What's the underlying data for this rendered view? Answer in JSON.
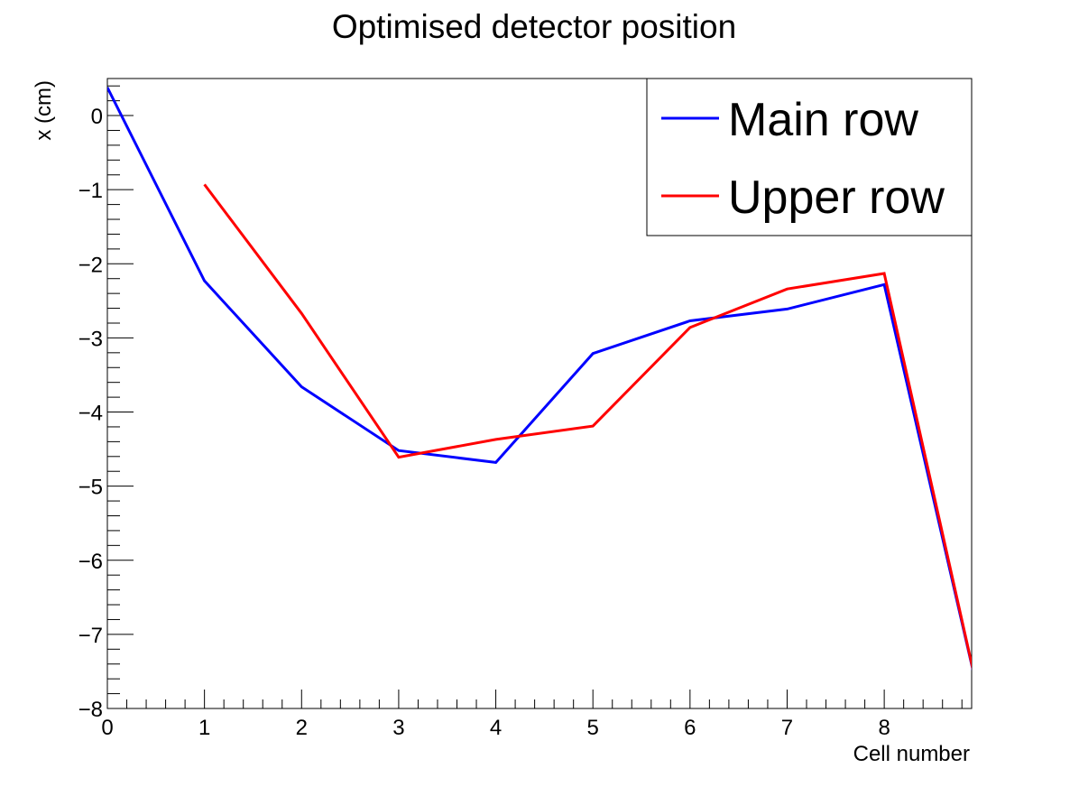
{
  "chart_data": {
    "type": "line",
    "title": "Optimised detector position",
    "xlabel": "Cell number",
    "ylabel": "x (cm)",
    "xlim": [
      0,
      8.9
    ],
    "ylim": [
      -8,
      0.5
    ],
    "x_ticks": [
      0,
      1,
      2,
      3,
      4,
      5,
      6,
      7,
      8
    ],
    "x_tick_labels": [
      "0",
      "1",
      "2",
      "3",
      "4",
      "5",
      "6",
      "7",
      "8"
    ],
    "y_ticks": [
      0,
      -1,
      -2,
      -3,
      -4,
      -5,
      -6,
      -7,
      -8
    ],
    "y_tick_labels": [
      "0",
      "−1",
      "−2",
      "−3",
      "−4",
      "−5",
      "−6",
      "−7",
      "−8"
    ],
    "grid": false,
    "legend_position": "top-right",
    "series": [
      {
        "name": "Main row",
        "color": "#0000ff",
        "x": [
          0,
          1,
          2,
          3,
          4,
          5,
          6,
          7,
          8,
          9
        ],
        "y": [
          0.38,
          -2.23,
          -3.66,
          -4.52,
          -4.68,
          -3.21,
          -2.77,
          -2.61,
          -2.28,
          -7.98
        ]
      },
      {
        "name": "Upper row",
        "color": "#ff0000",
        "x": [
          1,
          2,
          3,
          4,
          5,
          6,
          7,
          8,
          9
        ],
        "y": [
          -0.93,
          -2.67,
          -4.61,
          -4.37,
          -4.19,
          -2.86,
          -2.34,
          -2.13,
          -7.98
        ]
      }
    ]
  }
}
